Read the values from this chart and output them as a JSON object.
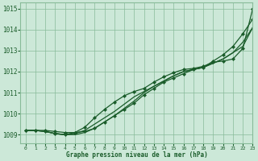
{
  "bg_color": "#cce8d8",
  "grid_color": "#88bb99",
  "line_color": "#1a5c2a",
  "xlabel": "Graphe pression niveau de la mer (hPa)",
  "xlim": [
    -0.5,
    23
  ],
  "ylim": [
    1008.6,
    1015.3
  ],
  "yticks": [
    1009,
    1010,
    1011,
    1012,
    1013,
    1014,
    1015
  ],
  "xticks": [
    0,
    1,
    2,
    3,
    4,
    5,
    6,
    7,
    8,
    9,
    10,
    11,
    12,
    13,
    14,
    15,
    16,
    17,
    18,
    19,
    20,
    21,
    22,
    23
  ],
  "series": [
    [
      1009.2,
      1009.2,
      1009.2,
      1009.15,
      1009.1,
      1009.1,
      1009.15,
      1009.3,
      1009.6,
      1009.9,
      1010.2,
      1010.5,
      1010.9,
      1011.2,
      1011.5,
      1011.7,
      1011.9,
      1012.1,
      1012.2,
      1012.5,
      1012.8,
      1013.2,
      1013.8,
      1014.5
    ],
    [
      1009.2,
      1009.2,
      1009.15,
      1009.05,
      1009.0,
      1009.0,
      1009.1,
      1009.3,
      1009.6,
      1009.9,
      1010.25,
      1010.6,
      1011.0,
      1011.3,
      1011.55,
      1011.8,
      1012.0,
      1012.1,
      1012.2,
      1012.4,
      1012.6,
      1012.9,
      1013.2,
      1014.1
    ],
    [
      1009.2,
      1009.2,
      1009.15,
      1009.05,
      1009.0,
      1009.05,
      1009.2,
      1009.5,
      1009.8,
      1010.1,
      1010.45,
      1010.8,
      1011.05,
      1011.3,
      1011.55,
      1011.8,
      1012.0,
      1012.1,
      1012.2,
      1012.4,
      1012.6,
      1012.9,
      1013.4,
      1014.1
    ],
    [
      1009.2,
      1009.2,
      1009.15,
      1009.05,
      1009.0,
      1009.1,
      1009.35,
      1009.8,
      1010.2,
      1010.55,
      1010.85,
      1011.05,
      1011.2,
      1011.5,
      1011.75,
      1011.95,
      1012.1,
      1012.15,
      1012.25,
      1012.45,
      1012.5,
      1012.6,
      1013.1,
      1015.0
    ]
  ],
  "marker_series_indices": [
    0,
    3
  ],
  "marker": "D",
  "marker_size": 2.0,
  "linewidth": 0.9
}
